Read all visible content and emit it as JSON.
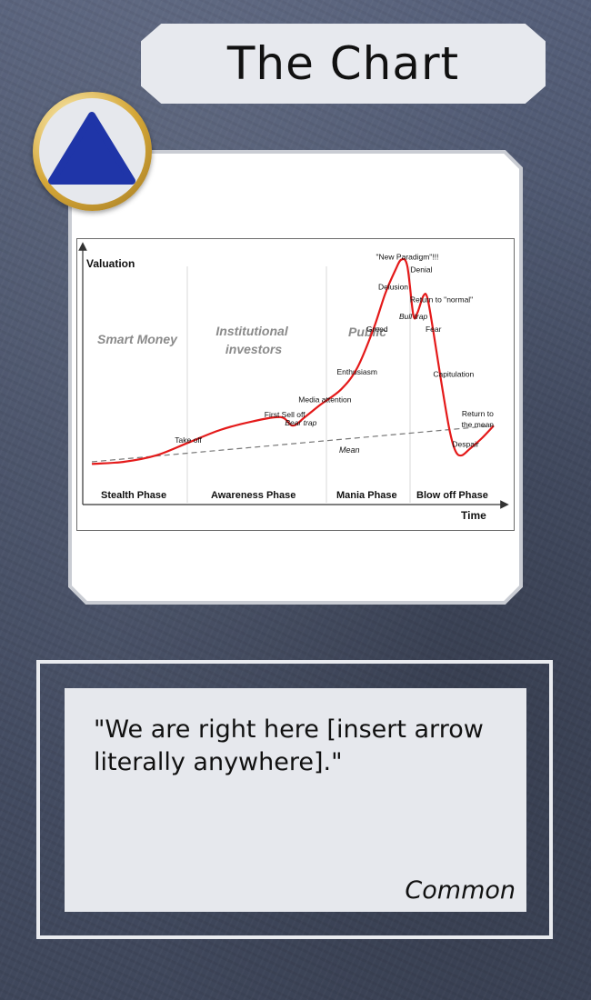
{
  "card": {
    "title": "The Chart",
    "flavor_text": "\"We are right here [insert arrow literally anywhere].\"",
    "rarity": "Common",
    "set_symbol": "blue-triangle-icon",
    "colors": {
      "set_symbol": "#1f35a8",
      "badge_ring": "#d4a637",
      "panel": "#e6e8ed",
      "curve": "#e41a1a"
    }
  },
  "chart_data": {
    "type": "line",
    "title": "",
    "xlabel": "Time",
    "ylabel": "Valuation",
    "phases": [
      "Stealth Phase",
      "Awareness Phase",
      "Mania Phase",
      "Blow off Phase"
    ],
    "groups": [
      "Smart Money",
      "Institutional investors",
      "Public"
    ],
    "mean_label": "Mean",
    "annotations": [
      {
        "text": "Take off",
        "x": 0.24,
        "y": 0.12
      },
      {
        "text": "First Sell off",
        "x": 0.48,
        "y": 0.24
      },
      {
        "text": "Bear trap",
        "x": 0.52,
        "y": 0.2
      },
      {
        "text": "Media attention",
        "x": 0.58,
        "y": 0.31
      },
      {
        "text": "Enthusiasm",
        "x": 0.66,
        "y": 0.44
      },
      {
        "text": "Greed",
        "x": 0.71,
        "y": 0.64
      },
      {
        "text": "Delusion",
        "x": 0.75,
        "y": 0.84
      },
      {
        "text": "\"New Paradigm\"!!!",
        "x": 0.785,
        "y": 0.98
      },
      {
        "text": "Denial",
        "x": 0.82,
        "y": 0.92
      },
      {
        "text": "Bull trap",
        "x": 0.8,
        "y": 0.7
      },
      {
        "text": "Return to \"normal\"",
        "x": 0.87,
        "y": 0.78
      },
      {
        "text": "Fear",
        "x": 0.85,
        "y": 0.64
      },
      {
        "text": "Capitulation",
        "x": 0.9,
        "y": 0.43
      },
      {
        "text": "Return to the mean",
        "x": 0.96,
        "y": 0.2
      },
      {
        "text": "Despair",
        "x": 0.93,
        "y": 0.1
      }
    ],
    "series": [
      {
        "x": [
          0.0,
          0.08,
          0.16,
          0.24,
          0.32,
          0.4,
          0.47,
          0.5,
          0.53,
          0.57,
          0.62,
          0.66,
          0.7,
          0.73,
          0.755,
          0.77,
          0.785,
          0.8,
          0.81,
          0.825,
          0.835,
          0.85,
          0.87,
          0.89,
          0.905,
          0.92,
          0.94,
          0.97,
          1.0
        ],
        "y": [
          0.02,
          0.03,
          0.06,
          0.12,
          0.18,
          0.22,
          0.24,
          0.2,
          0.24,
          0.3,
          0.37,
          0.47,
          0.65,
          0.82,
          0.93,
          0.98,
          0.95,
          0.72,
          0.73,
          0.81,
          0.8,
          0.64,
          0.4,
          0.18,
          0.08,
          0.06,
          0.09,
          0.14,
          0.2
        ]
      }
    ],
    "mean_line": {
      "x": [
        0.0,
        1.0
      ],
      "y": [
        0.03,
        0.2
      ]
    },
    "ylim": [
      0,
      1
    ],
    "xlim": [
      0,
      1
    ],
    "grid": false
  }
}
